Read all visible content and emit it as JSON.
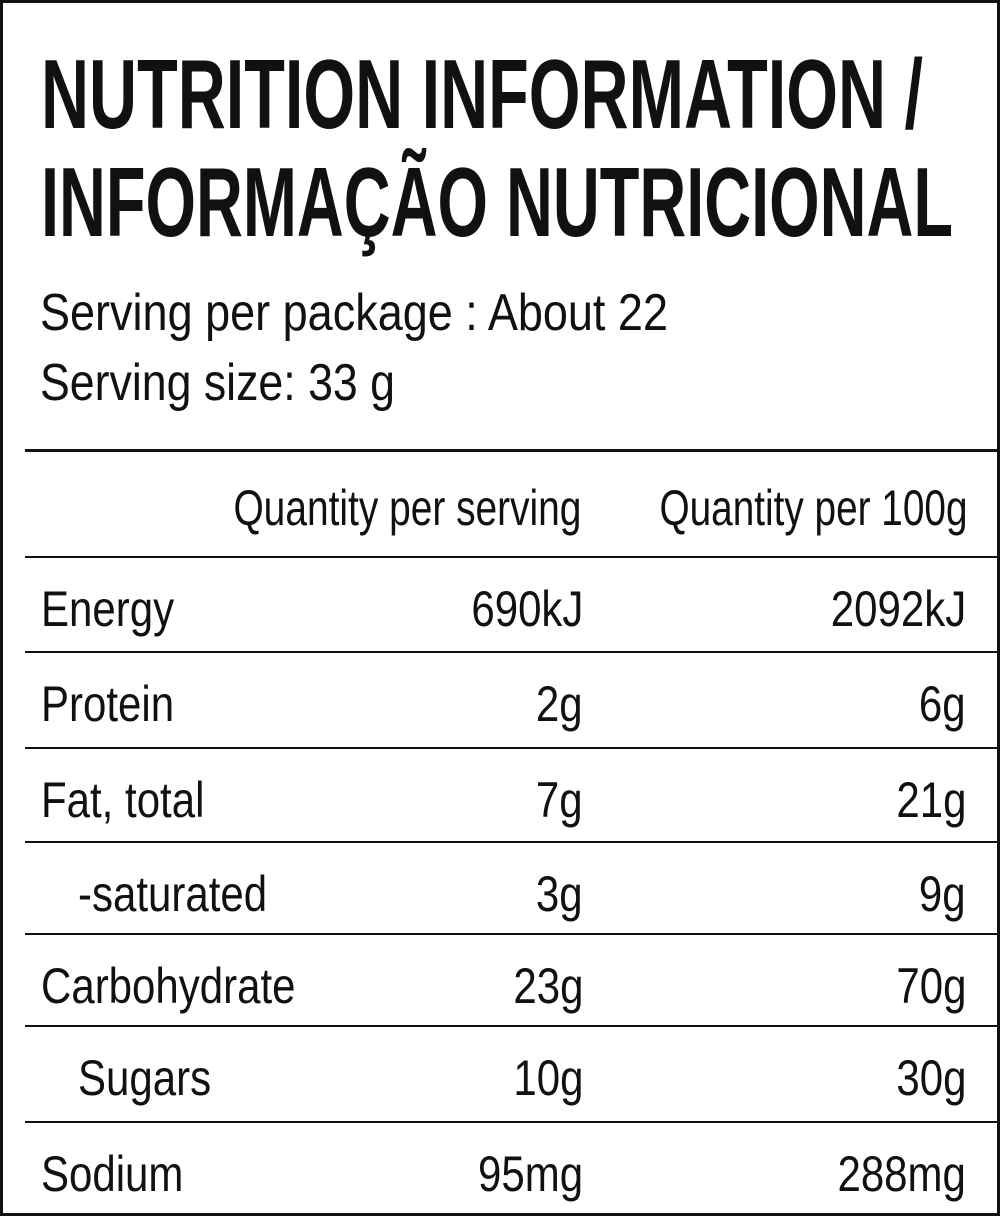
{
  "header": {
    "title_lines": [
      "NUTRITION INFORMATION /",
      "INFORMAÇÃO NUTRICIONAL"
    ],
    "serving_per_package": "Serving per package : About 22",
    "serving_size": "Serving size: 33 g"
  },
  "table": {
    "columns": [
      "Quantity per serving",
      "Quantity per 100g"
    ],
    "rows": [
      [
        "Energy",
        "690kJ",
        "2092kJ"
      ],
      [
        "Protein",
        "2g",
        "6g"
      ],
      [
        "Fat, total",
        "7g",
        "21g"
      ],
      [
        "-saturated",
        "3g",
        "9g"
      ],
      [
        "Carbohydrate",
        "23g",
        "70g"
      ],
      [
        "Sugars",
        "10g",
        "30g"
      ],
      [
        "Sodium",
        "95mg",
        "288mg"
      ]
    ]
  }
}
